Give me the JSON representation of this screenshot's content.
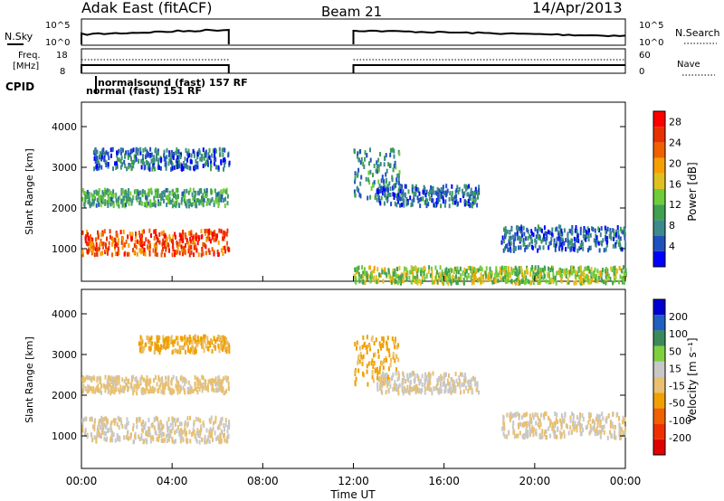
{
  "header": {
    "title": "Adak East (fitACF)",
    "beam": "Beam 21",
    "date": "14/Apr/2013"
  },
  "top_panels": {
    "nsky_label": "N.Sky",
    "nsearch_label": "N.Search",
    "nsky_ticks": [
      "10^5",
      "10^0"
    ],
    "nsearch_ticks": [
      "10^5",
      "10^0"
    ],
    "freq_label_1": "Freq.",
    "freq_label_2": "[MHz]",
    "freq_ticks": [
      "18",
      "8"
    ],
    "nave_label": "Nave",
    "nave_ticks": [
      "60",
      "0"
    ],
    "cpid_label": "CPID",
    "cpid_entries": [
      {
        "text": "normal (fast) 151 RF",
        "x_hour": 0.3
      },
      {
        "text": "normalsound (fast)  157 RF",
        "x_hour": 1.5
      }
    ]
  },
  "colors": {
    "power_scale": [
      "#0000ff",
      "#2050c0",
      "#3c8a8c",
      "#3fa050",
      "#6fcc3a",
      "#e0c020",
      "#f5a000",
      "#f06000",
      "#e83000",
      "#ff0000"
    ],
    "velocity_scale": [
      "#e00000",
      "#f03000",
      "#f06000",
      "#f0a000",
      "#e8c070",
      "#c8c8c8",
      "#7fd040",
      "#3c8a5a",
      "#2060c0",
      "#0000d0"
    ]
  },
  "chart_data": [
    {
      "type": "heatmap",
      "title": "",
      "xlabel": "Time UT",
      "ylabel": "Slant Range [km]",
      "xlim": [
        0,
        24
      ],
      "ylim": [
        200,
        4600
      ],
      "x_ticks": [
        "00:00",
        "04:00",
        "08:00",
        "12:00",
        "16:00",
        "20:00",
        "00:00"
      ],
      "y_ticks": [
        1000,
        2000,
        3000,
        4000
      ],
      "colorbar_label": "Power [dB]",
      "colorbar_ticks": [
        "4",
        "8",
        "12",
        "16",
        "20",
        "24",
        "28"
      ],
      "colorbar_range": [
        0,
        30
      ],
      "data_gaps_hours": [
        [
          6.5,
          12.0
        ]
      ],
      "bands": [
        {
          "t_start": 0.0,
          "t_end": 6.5,
          "range_km": [
            900,
            1500
          ],
          "power_db": 24
        },
        {
          "t_start": 0.0,
          "t_end": 6.5,
          "range_km": [
            2100,
            2500
          ],
          "power_db": 10
        },
        {
          "t_start": 0.5,
          "t_end": 6.5,
          "range_km": [
            3000,
            3500
          ],
          "power_db": 6
        },
        {
          "t_start": 12.0,
          "t_end": 14.0,
          "range_km": [
            2300,
            3500
          ],
          "power_db": 8
        },
        {
          "t_start": 13.0,
          "t_end": 17.5,
          "range_km": [
            2100,
            2600
          ],
          "power_db": 6
        },
        {
          "t_start": 18.5,
          "t_end": 24.0,
          "range_km": [
            1000,
            1600
          ],
          "power_db": 6
        },
        {
          "t_start": 12.0,
          "t_end": 24.0,
          "range_km": [
            200,
            600
          ],
          "power_db": 14
        }
      ]
    },
    {
      "type": "heatmap",
      "title": "",
      "xlabel": "Time UT",
      "ylabel": "Slant Range [km]",
      "xlim": [
        0,
        24
      ],
      "ylim": [
        200,
        4600
      ],
      "x_ticks": [
        "00:00",
        "04:00",
        "08:00",
        "12:00",
        "16:00",
        "20:00",
        "00:00"
      ],
      "y_ticks": [
        1000,
        2000,
        3000,
        4000
      ],
      "colorbar_label": "Velocity [m s⁻¹]",
      "colorbar_ticks": [
        "200",
        "100",
        "50",
        "15",
        "-15",
        "-50",
        "-100",
        "-200"
      ],
      "colorbar_range": [
        -250,
        250
      ],
      "data_gaps_hours": [
        [
          6.5,
          12.0
        ]
      ],
      "bands": [
        {
          "t_start": 0.0,
          "t_end": 6.5,
          "range_km": [
            900,
            1500
          ],
          "velocity": 0
        },
        {
          "t_start": 0.0,
          "t_end": 6.5,
          "range_km": [
            2100,
            2500
          ],
          "velocity": -20
        },
        {
          "t_start": 2.5,
          "t_end": 6.5,
          "range_km": [
            3100,
            3500
          ],
          "velocity": -60
        },
        {
          "t_start": 12.0,
          "t_end": 14.0,
          "range_km": [
            2300,
            3500
          ],
          "velocity": -60
        },
        {
          "t_start": 13.0,
          "t_end": 17.5,
          "range_km": [
            2100,
            2600
          ],
          "velocity": 10
        },
        {
          "t_start": 18.5,
          "t_end": 24.0,
          "range_km": [
            1000,
            1600
          ],
          "velocity": 0
        }
      ]
    }
  ]
}
